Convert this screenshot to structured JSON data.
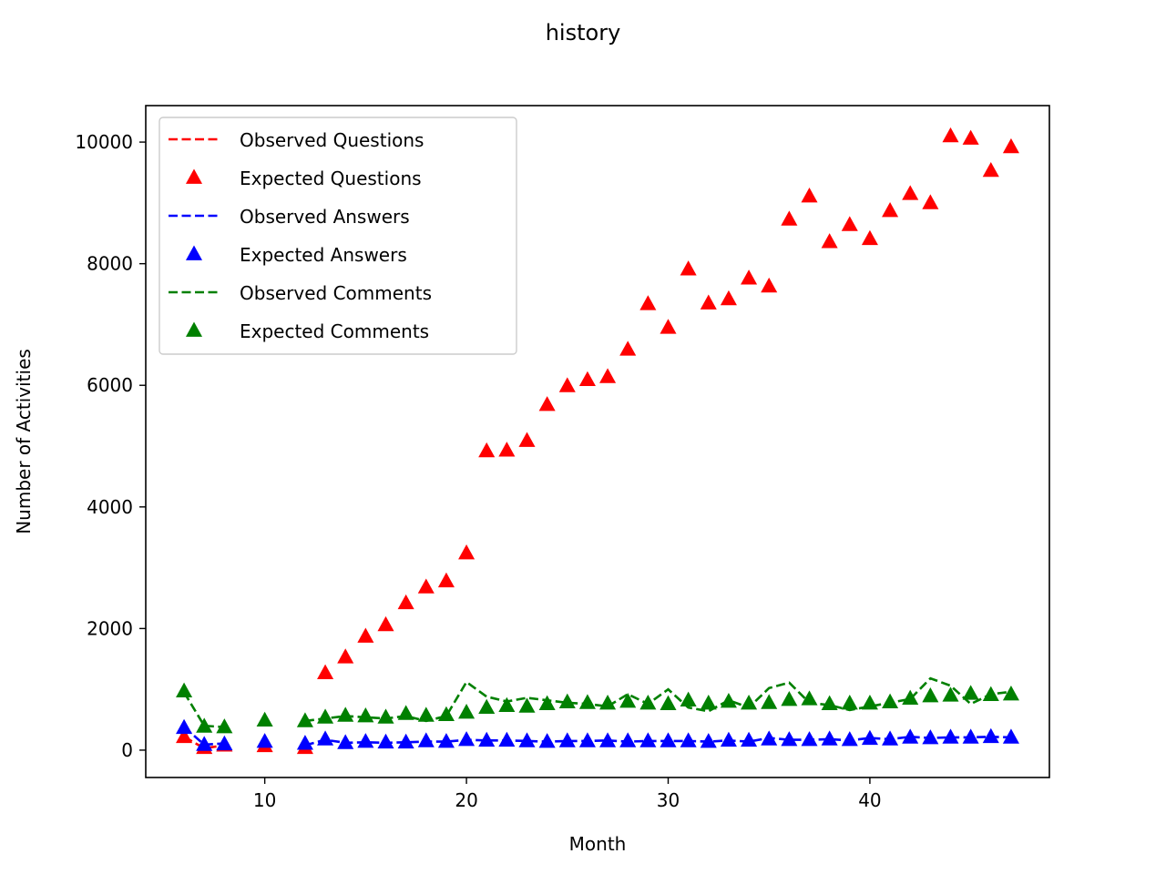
{
  "chart_data": {
    "type": "line",
    "title": "history",
    "xlabel": "Month",
    "ylabel": "Number of Activities",
    "xlim": [
      4.1,
      48.9
    ],
    "ylim": [
      -450,
      10600
    ],
    "xticks": [
      10,
      20,
      30,
      40
    ],
    "yticks": [
      0,
      2000,
      4000,
      6000,
      8000,
      10000
    ],
    "grid": false,
    "legend_position": "upper-left",
    "x": [
      6,
      7,
      8,
      9,
      10,
      11,
      12,
      13,
      14,
      15,
      16,
      17,
      18,
      19,
      20,
      21,
      22,
      23,
      24,
      25,
      26,
      27,
      28,
      29,
      30,
      31,
      32,
      33,
      34,
      35,
      36,
      37,
      38,
      39,
      40,
      41,
      42,
      43,
      44,
      45,
      46,
      47
    ],
    "series": [
      {
        "name": "Observed Questions",
        "style": "dashed",
        "color": "#ff0000",
        "values": [
          220,
          30,
          80,
          null,
          60,
          null,
          20,
          null,
          null,
          null,
          null,
          null,
          null,
          null,
          null,
          null,
          null,
          null,
          null,
          null,
          null,
          null,
          null,
          null,
          null,
          null,
          null,
          null,
          null,
          null,
          null,
          null,
          null,
          null,
          null,
          null,
          null,
          null,
          null,
          null,
          null,
          null
        ]
      },
      {
        "name": "Expected Questions",
        "style": "triangle",
        "color": "#ff0000",
        "values": [
          220,
          40,
          80,
          null,
          70,
          null,
          40,
          1270,
          1530,
          1870,
          2060,
          2420,
          2680,
          2780,
          3240,
          4920,
          4930,
          5090,
          5680,
          5990,
          6090,
          6140,
          6590,
          7340,
          6950,
          7910,
          7350,
          7420,
          7760,
          7630,
          8730,
          9110,
          8360,
          8640,
          8410,
          8870,
          9150,
          9000,
          10100,
          10060,
          9530,
          9920
        ]
      },
      {
        "name": "Observed Answers",
        "style": "dashed",
        "color": "#0000ff",
        "values": [
          380,
          90,
          110,
          null,
          130,
          null,
          80,
          170,
          120,
          130,
          120,
          130,
          140,
          140,
          170,
          160,
          160,
          150,
          140,
          150,
          150,
          160,
          140,
          150,
          150,
          150,
          140,
          160,
          140,
          200,
          170,
          170,
          180,
          160,
          200,
          180,
          220,
          200,
          210,
          210,
          220,
          210
        ]
      },
      {
        "name": "Expected Answers",
        "style": "triangle",
        "color": "#0000ff",
        "values": [
          370,
          90,
          100,
          null,
          140,
          null,
          110,
          180,
          120,
          140,
          130,
          130,
          150,
          140,
          170,
          160,
          160,
          150,
          140,
          150,
          150,
          150,
          150,
          150,
          150,
          150,
          140,
          160,
          160,
          180,
          170,
          170,
          180,
          170,
          190,
          180,
          210,
          200,
          210,
          210,
          220,
          210
        ]
      },
      {
        "name": "Observed Comments",
        "style": "dashed",
        "color": "#008000",
        "values": [
          950,
          400,
          380,
          null,
          520,
          null,
          480,
          520,
          560,
          540,
          520,
          560,
          480,
          560,
          1120,
          880,
          800,
          860,
          820,
          780,
          760,
          720,
          920,
          760,
          1000,
          700,
          640,
          820,
          700,
          1020,
          1110,
          780,
          740,
          660,
          720,
          780,
          840,
          1180,
          1060,
          760,
          920,
          960
        ]
      },
      {
        "name": "Expected Comments",
        "style": "triangle",
        "color": "#008000",
        "values": [
          970,
          390,
          380,
          null,
          490,
          null,
          480,
          540,
          570,
          560,
          540,
          600,
          570,
          580,
          620,
          700,
          730,
          720,
          760,
          790,
          780,
          770,
          800,
          770,
          760,
          820,
          770,
          800,
          770,
          780,
          830,
          840,
          760,
          770,
          770,
          790,
          850,
          890,
          900,
          930,
          910,
          920
        ]
      }
    ]
  }
}
